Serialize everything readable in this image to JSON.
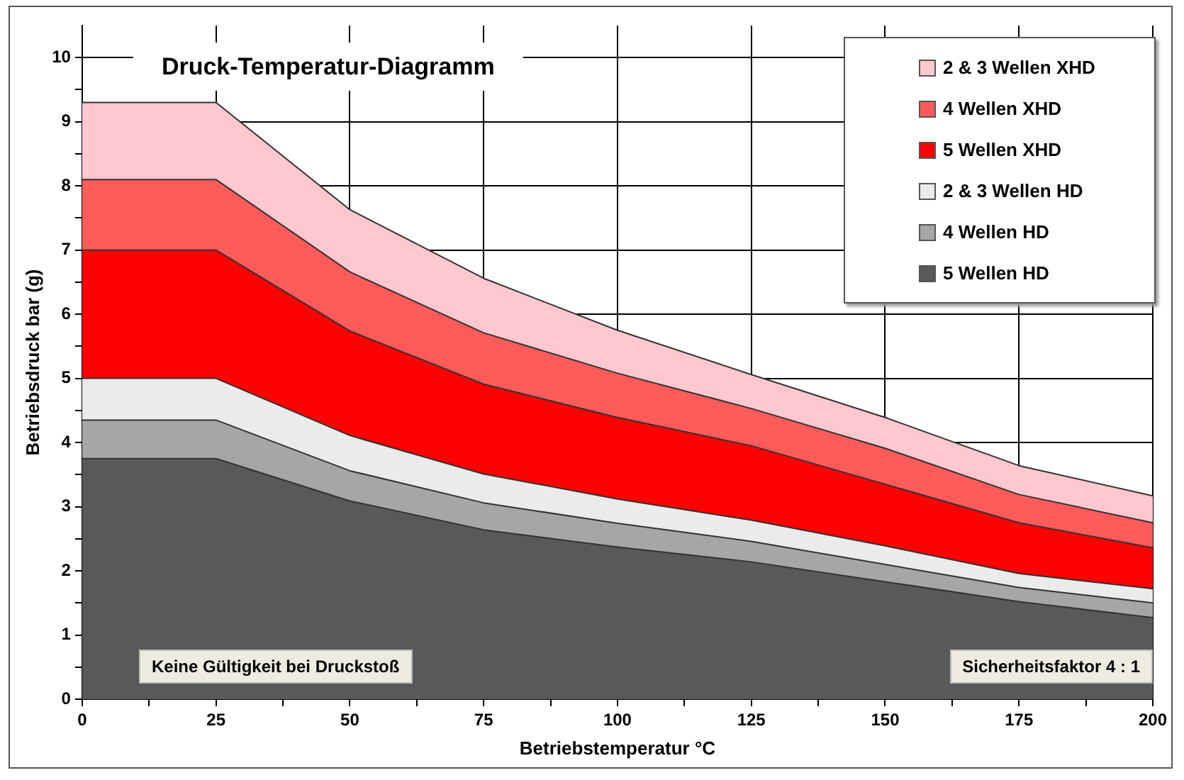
{
  "chart_data": {
    "type": "area",
    "title": "Druck-Temperatur-Diagramm",
    "xlabel": "Betriebstemperatur °C",
    "ylabel": "Betriebsdruck bar (g)",
    "x": [
      0,
      25,
      50,
      75,
      100,
      125,
      150,
      175,
      200
    ],
    "series": [
      {
        "name": "2 & 3 Wellen XHD",
        "color": "#ffc7ce",
        "values": [
          9.3,
          9.3,
          7.63,
          6.56,
          5.75,
          5.06,
          4.39,
          3.64,
          3.17
        ]
      },
      {
        "name": "4 Wellen XHD",
        "color": "#ff5b5b",
        "values": [
          8.1,
          8.1,
          6.66,
          5.71,
          5.08,
          4.53,
          3.91,
          3.19,
          2.75
        ]
      },
      {
        "name": "5 Wellen XHD",
        "color": "#ff0000",
        "values": [
          7.0,
          7.0,
          5.74,
          4.91,
          4.39,
          3.95,
          3.35,
          2.75,
          2.36
        ]
      },
      {
        "name": "2 & 3 Wellen HD",
        "color": "#ebebeb",
        "values": [
          5.0,
          5.0,
          4.11,
          3.51,
          3.12,
          2.79,
          2.39,
          1.96,
          1.72
        ]
      },
      {
        "name": "4 Wellen HD",
        "color": "#a6a6a6",
        "values": [
          4.35,
          4.35,
          3.56,
          3.06,
          2.74,
          2.46,
          2.1,
          1.74,
          1.5
        ]
      },
      {
        "name": "5 Wellen HD",
        "color": "#595959",
        "values": [
          3.75,
          3.75,
          3.09,
          2.64,
          2.37,
          2.14,
          1.83,
          1.52,
          1.27
        ]
      }
    ],
    "xlim": [
      0,
      200
    ],
    "xticks": [
      0,
      {
        "value": 12.5,
        "label": null
      },
      25,
      {
        "value": 37.5,
        "label": null
      },
      50,
      {
        "value": 62.5,
        "label": null
      },
      75,
      {
        "value": 87.5,
        "label": null
      },
      100,
      {
        "value": 112.5,
        "label": null
      },
      125,
      {
        "value": 137.5,
        "label": null
      },
      150,
      {
        "value": 162.5,
        "label": null
      },
      175,
      {
        "value": 187.5,
        "label": null
      },
      200
    ],
    "ylim": [
      0,
      10.5
    ],
    "yticks": [
      0,
      {
        "value": 0.5,
        "label": null
      },
      1,
      {
        "value": 1.5,
        "label": null
      },
      2,
      {
        "value": 2.5,
        "label": null
      },
      3,
      {
        "value": 3.5,
        "label": null
      },
      4,
      {
        "value": 4.5,
        "label": null
      },
      5,
      {
        "value": 5.5,
        "label": null
      },
      6,
      {
        "value": 6.5,
        "label": null
      },
      7,
      {
        "value": 7.5,
        "label": null
      },
      8,
      {
        "value": 8.5,
        "label": null
      },
      9,
      {
        "value": 9.5,
        "label": null
      },
      10
    ],
    "grid": true,
    "legend": "top right",
    "annotations": [
      "Keine Gültigkeit bei Druckstoß",
      "Sicherheitsfaktor 4 : 1"
    ]
  }
}
